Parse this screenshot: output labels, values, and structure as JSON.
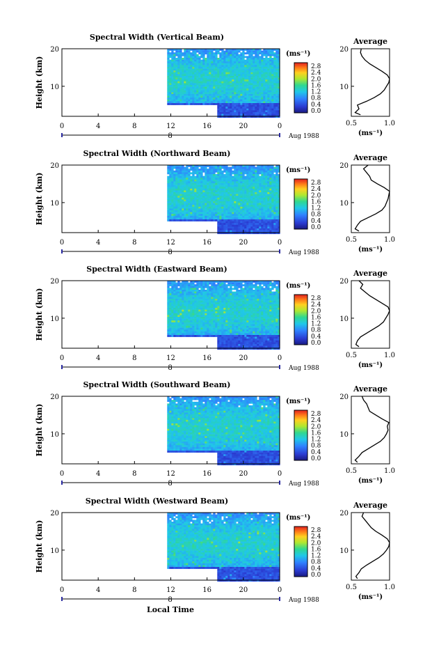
{
  "figure": {
    "xlabel": "Local Time",
    "cbar_unit_label": "(ms⁻¹)",
    "avg_title": "Average",
    "avg_xlabel": "(ms⁻¹)"
  },
  "chart_data": [
    {
      "type": "heatmap",
      "title": "Spectral Width (Vertical Beam)",
      "ylabel": "Height (km)",
      "xlabel": "Local Time",
      "x_ticks": [
        "0",
        "4",
        "8",
        "12",
        "16",
        "20",
        "0"
      ],
      "x_range_hours": [
        0,
        24
      ],
      "y_ticks": [
        "20",
        "10"
      ],
      "ylim": [
        2,
        20
      ],
      "date_label": "Aug 1988",
      "day_marker": "8",
      "data_start_hour": 11.6,
      "missing_block": {
        "hour_from": 11.6,
        "hour_to": 17.0,
        "height_below_km": 5.2
      },
      "colorbar": {
        "unit": "(ms⁻¹)",
        "ticks": [
          "2.8",
          "2.4",
          "2.0",
          "1.6",
          "1.2",
          "0.8",
          "0.4",
          "0.0"
        ],
        "range": [
          0,
          2.8
        ]
      },
      "average_profile": {
        "title": "Average",
        "xlabel": "(ms⁻¹)",
        "xlim": [
          0.5,
          1.0
        ],
        "x_ticks": [
          "0.5",
          "1.0"
        ],
        "y_ticks": [
          "20",
          "10"
        ],
        "height": [
          2.4,
          3,
          4,
          5,
          6,
          7,
          8,
          9,
          10,
          11,
          12,
          13,
          14,
          15,
          16,
          17,
          18,
          19,
          20
        ],
        "width": [
          0.62,
          0.55,
          0.6,
          0.58,
          0.7,
          0.8,
          0.88,
          0.93,
          0.96,
          0.99,
          1.0,
          0.97,
          0.9,
          0.82,
          0.74,
          0.68,
          0.64,
          0.62,
          0.63
        ]
      }
    },
    {
      "type": "heatmap",
      "title": "Spectral Width (Northward Beam)",
      "ylabel": "Height (km)",
      "xlabel": "Local Time",
      "x_ticks": [
        "0",
        "4",
        "8",
        "12",
        "16",
        "20",
        "0"
      ],
      "x_range_hours": [
        0,
        24
      ],
      "y_ticks": [
        "20",
        "10"
      ],
      "ylim": [
        2,
        20
      ],
      "date_label": "Aug 1988",
      "day_marker": "8",
      "data_start_hour": 11.6,
      "missing_block": {
        "hour_from": 11.6,
        "hour_to": 17.0,
        "height_below_km": 5.2
      },
      "colorbar": {
        "unit": "(ms⁻¹)",
        "ticks": [
          "2.8",
          "2.4",
          "2.0",
          "1.6",
          "1.2",
          "0.8",
          "0.4",
          "0.0"
        ],
        "range": [
          0,
          2.8
        ]
      },
      "average_profile": {
        "title": "Average",
        "xlabel": "(ms⁻¹)",
        "xlim": [
          0.5,
          1.0
        ],
        "x_ticks": [
          "0.5",
          "1.0"
        ],
        "y_ticks": [
          "20",
          "10"
        ],
        "height": [
          2.4,
          3,
          4,
          5,
          6,
          7,
          8,
          9,
          10,
          11,
          12,
          13,
          14,
          15,
          16,
          17,
          18,
          19,
          20
        ],
        "width": [
          0.6,
          0.55,
          0.58,
          0.62,
          0.72,
          0.82,
          0.9,
          0.94,
          0.96,
          0.98,
          0.99,
          1.0,
          0.93,
          0.84,
          0.76,
          0.74,
          0.7,
          0.66,
          0.72
        ]
      }
    },
    {
      "type": "heatmap",
      "title": "Spectral Width (Eastward Beam)",
      "ylabel": "Height (km)",
      "xlabel": "Local Time",
      "x_ticks": [
        "0",
        "4",
        "8",
        "12",
        "16",
        "20",
        "0"
      ],
      "x_range_hours": [
        0,
        24
      ],
      "y_ticks": [
        "20",
        "10"
      ],
      "ylim": [
        2,
        20
      ],
      "date_label": "Aug 1988",
      "day_marker": "8",
      "data_start_hour": 11.6,
      "missing_block": {
        "hour_from": 11.6,
        "hour_to": 17.0,
        "height_below_km": 5.2
      },
      "colorbar": {
        "unit": "(ms⁻¹)",
        "ticks": [
          "2.8",
          "2.4",
          "2.0",
          "1.6",
          "1.2",
          "0.8",
          "0.4",
          "0.0"
        ],
        "range": [
          0,
          2.8
        ]
      },
      "average_profile": {
        "title": "Average",
        "xlabel": "(ms⁻¹)",
        "xlim": [
          0.5,
          1.0
        ],
        "x_ticks": [
          "0.5",
          "1.0"
        ],
        "y_ticks": [
          "20",
          "10"
        ],
        "height": [
          2.4,
          3,
          4,
          5,
          6,
          7,
          8,
          9,
          10,
          11,
          12,
          13,
          14,
          15,
          16,
          17,
          18,
          19,
          20
        ],
        "width": [
          0.6,
          0.56,
          0.58,
          0.62,
          0.7,
          0.78,
          0.86,
          0.92,
          0.95,
          0.98,
          1.0,
          0.98,
          0.9,
          0.82,
          0.74,
          0.68,
          0.62,
          0.65,
          0.6
        ]
      }
    },
    {
      "type": "heatmap",
      "title": "Spectral Width (Southward Beam)",
      "ylabel": "Height (km)",
      "xlabel": "Local Time",
      "x_ticks": [
        "0",
        "4",
        "8",
        "12",
        "16",
        "20",
        "0"
      ],
      "x_range_hours": [
        0,
        24
      ],
      "y_ticks": [
        "20",
        "10"
      ],
      "ylim": [
        2,
        20
      ],
      "date_label": "Aug 1988",
      "day_marker": "8",
      "data_start_hour": 11.6,
      "missing_block": {
        "hour_from": 11.6,
        "hour_to": 17.0,
        "height_below_km": 5.2
      },
      "colorbar": {
        "unit": "(ms⁻¹)",
        "ticks": [
          "2.8",
          "2.4",
          "2.0",
          "1.6",
          "1.2",
          "0.8",
          "0.4",
          "0.0"
        ],
        "range": [
          0,
          2.8
        ]
      },
      "average_profile": {
        "title": "Average",
        "xlabel": "(ms⁻¹)",
        "xlim": [
          0.5,
          1.0
        ],
        "x_ticks": [
          "0.5",
          "1.0"
        ],
        "y_ticks": [
          "20",
          "10"
        ],
        "height": [
          2.4,
          3,
          4,
          5,
          6,
          7,
          8,
          9,
          10,
          11,
          12,
          13,
          14,
          15,
          16,
          17,
          18,
          19,
          20
        ],
        "width": [
          0.58,
          0.55,
          0.6,
          0.64,
          0.72,
          0.8,
          0.88,
          0.93,
          0.96,
          0.98,
          0.97,
          0.99,
          0.9,
          0.82,
          0.74,
          0.72,
          0.7,
          0.66,
          0.64
        ]
      }
    },
    {
      "type": "heatmap",
      "title": "Spectral Width (Westward Beam)",
      "ylabel": "Height (km)",
      "xlabel": "Local Time",
      "x_ticks": [
        "0",
        "4",
        "8",
        "12",
        "16",
        "20",
        "0"
      ],
      "x_range_hours": [
        0,
        24
      ],
      "y_ticks": [
        "20",
        "10"
      ],
      "ylim": [
        2,
        20
      ],
      "date_label": "Aug 1988",
      "day_marker": "8",
      "data_start_hour": 11.6,
      "missing_block": {
        "hour_from": 11.6,
        "hour_to": 17.0,
        "height_below_km": 5.2
      },
      "colorbar": {
        "unit": "(ms⁻¹)",
        "ticks": [
          "2.8",
          "2.4",
          "2.0",
          "1.6",
          "1.2",
          "0.8",
          "0.4",
          "0.0"
        ],
        "range": [
          0,
          2.8
        ]
      },
      "average_profile": {
        "title": "Average",
        "xlabel": "(ms⁻¹)",
        "xlim": [
          0.5,
          1.0
        ],
        "x_ticks": [
          "0.5",
          "1.0"
        ],
        "y_ticks": [
          "20",
          "10"
        ],
        "height": [
          2.4,
          3,
          4,
          5,
          6,
          7,
          8,
          9,
          10,
          11,
          12,
          13,
          14,
          15,
          16,
          17,
          18,
          19,
          20
        ],
        "width": [
          0.58,
          0.56,
          0.6,
          0.63,
          0.7,
          0.78,
          0.86,
          0.92,
          0.96,
          0.99,
          1.0,
          0.97,
          0.9,
          0.82,
          0.76,
          0.72,
          0.68,
          0.64,
          0.66
        ]
      }
    }
  ]
}
